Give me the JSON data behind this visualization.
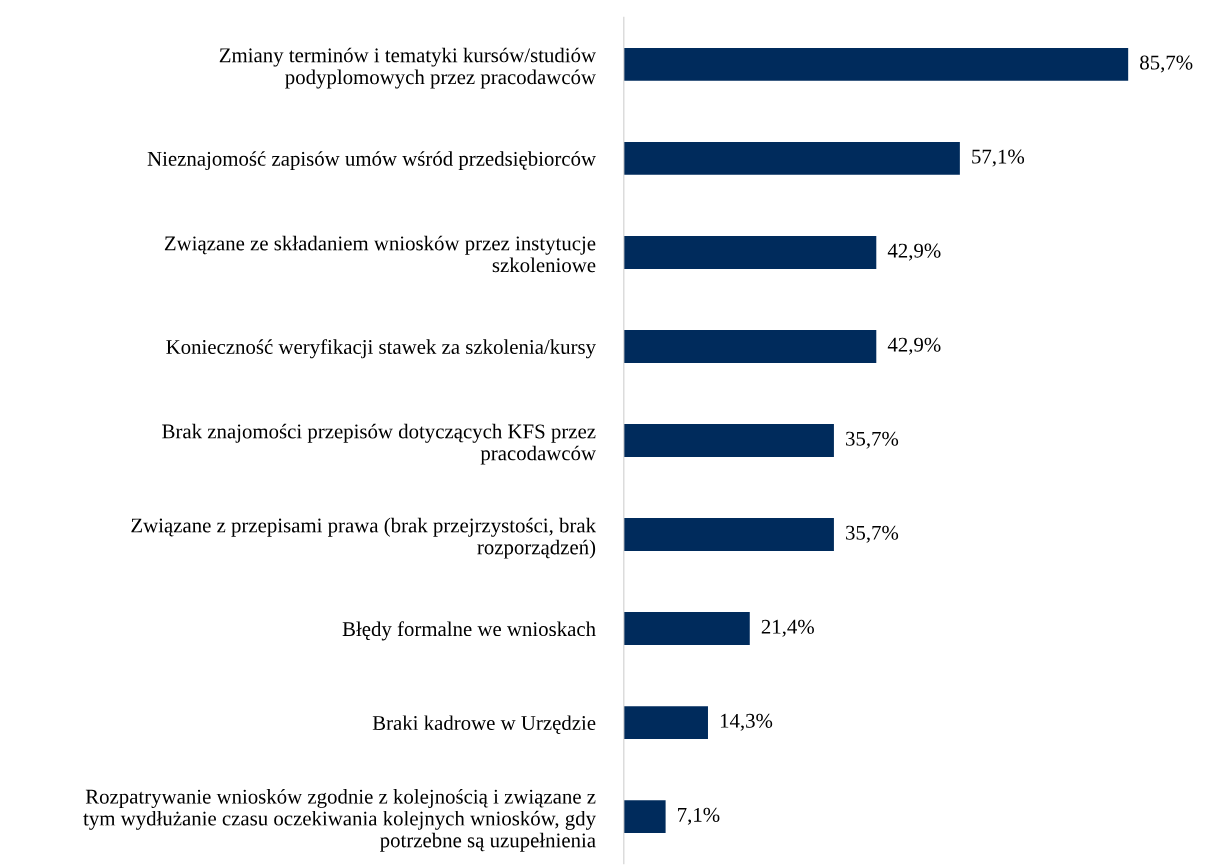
{
  "chart_data": {
    "type": "bar",
    "orientation": "horizontal",
    "categories": [
      "Zmiany terminów i tematyki kursów/studiów\npodyplomowych przez pracodawców",
      "Nieznajomość zapisów umów wśród przedsiębiorców",
      "Związane ze składaniem wniosków przez instytucje\nszkoleniowe",
      "Konieczność weryfikacji stawek za szkolenia/kursy",
      "Brak znajomości przepisów dotyczących KFS przez\npracodawców",
      "Związane z przepisami prawa (brak przejrzystości, brak\nrozporządzeń)",
      "Błędy formalne we wnioskach",
      "Braki kadrowe w Urzędzie",
      "Rozpatrywanie wniosków zgodnie z kolejnością i związane z\ntym wydłużanie czasu oczekiwania kolejnych wniosków, gdy\npotrzebne są uzupełnienia"
    ],
    "values": [
      85.7,
      57.1,
      42.9,
      42.9,
      35.7,
      35.7,
      21.4,
      14.3,
      7.1
    ],
    "value_labels": [
      "85,7%",
      "57,1%",
      "42,9%",
      "42,9%",
      "35,7%",
      "35,7%",
      "21,4%",
      "14,3%",
      "7,1%"
    ],
    "color": "#002b5c",
    "grid": false,
    "legend": false
  }
}
